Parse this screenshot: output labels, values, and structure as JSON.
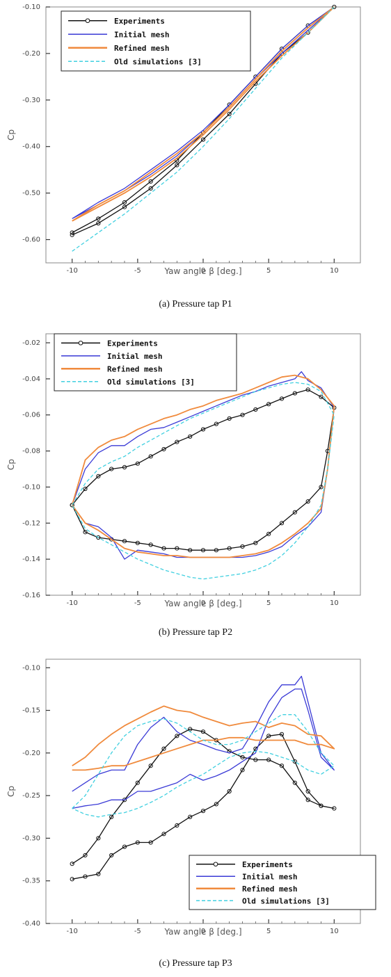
{
  "colors": {
    "experiments": "#111111",
    "initial_mesh": "#3a3ad6",
    "refined_mesh": "#f08a3c",
    "old_simulations": "#40d0e0"
  },
  "chart_data": [
    {
      "type": "line",
      "caption": "(a)  Pressure tap P1",
      "xlabel": "Yaw angle β [deg.]",
      "ylabel": "Cp",
      "xlim": [
        -12,
        12
      ],
      "ylim": [
        -0.65,
        -0.1
      ],
      "xticks": [
        -10,
        -5,
        0,
        5,
        10
      ],
      "xtick_labels": [
        "-10",
        "-5",
        "0",
        "5",
        "10"
      ],
      "yticks": [
        -0.1,
        -0.2,
        -0.3,
        -0.4,
        -0.5,
        -0.6
      ],
      "ytick_labels": [
        "-0.10",
        "-0.20",
        "-0.30",
        "-0.40",
        "-0.50",
        "-0.60"
      ],
      "legend_position": "top-left",
      "series": [
        {
          "name": "Experiments",
          "key": "experiments",
          "marker": "circle",
          "x": [
            -10,
            -8,
            -6,
            -4,
            -2,
            0,
            2,
            4,
            6,
            8,
            10,
            8,
            6,
            4,
            2,
            0,
            -2,
            -4,
            -6,
            -8,
            -10
          ],
          "y": [
            -0.59,
            -0.565,
            -0.53,
            -0.49,
            -0.44,
            -0.385,
            -0.33,
            -0.265,
            -0.2,
            -0.155,
            -0.1,
            -0.14,
            -0.19,
            -0.25,
            -0.31,
            -0.37,
            -0.43,
            -0.475,
            -0.52,
            -0.555,
            -0.585
          ]
        },
        {
          "name": "Initial mesh",
          "key": "initial_mesh",
          "x": [
            -10,
            -8,
            -6,
            -4,
            -2,
            0,
            2,
            4,
            6,
            8,
            10,
            8,
            6,
            4,
            2,
            0,
            -2,
            -4,
            -6,
            -8,
            -10
          ],
          "y": [
            -0.555,
            -0.525,
            -0.495,
            -0.46,
            -0.42,
            -0.37,
            -0.315,
            -0.255,
            -0.2,
            -0.15,
            -0.1,
            -0.14,
            -0.19,
            -0.25,
            -0.31,
            -0.365,
            -0.41,
            -0.45,
            -0.49,
            -0.52,
            -0.555
          ]
        },
        {
          "name": "Refined mesh",
          "key": "refined_mesh",
          "x": [
            -10,
            -8,
            -6,
            -4,
            -2,
            0,
            2,
            4,
            6,
            8,
            10,
            8,
            6,
            4,
            2,
            0,
            -2,
            -4,
            -6,
            -8,
            -10
          ],
          "y": [
            -0.56,
            -0.53,
            -0.5,
            -0.465,
            -0.425,
            -0.375,
            -0.32,
            -0.26,
            -0.205,
            -0.155,
            -0.1,
            -0.145,
            -0.195,
            -0.255,
            -0.315,
            -0.37,
            -0.415,
            -0.455,
            -0.495,
            -0.525,
            -0.56
          ]
        },
        {
          "name": "Old simulations [3]",
          "key": "old_simulations",
          "dashed": true,
          "x": [
            -10,
            -8,
            -6,
            -4,
            -2,
            0,
            2,
            4,
            6,
            8,
            10
          ],
          "y": [
            -0.625,
            -0.585,
            -0.545,
            -0.5,
            -0.455,
            -0.4,
            -0.34,
            -0.275,
            -0.21,
            -0.155,
            -0.1
          ]
        }
      ]
    },
    {
      "type": "line",
      "caption": "(b)  Pressure tap P2",
      "xlabel": "Yaw angle β [deg.]",
      "ylabel": "Cp",
      "xlim": [
        -12,
        12
      ],
      "ylim": [
        -0.16,
        -0.015
      ],
      "xticks": [
        -10,
        -5,
        0,
        5,
        10
      ],
      "xtick_labels": [
        "-10",
        "-5",
        "0",
        "5",
        "10"
      ],
      "yticks": [
        -0.02,
        -0.04,
        -0.06,
        -0.08,
        -0.1,
        -0.12,
        -0.14,
        -0.16
      ],
      "ytick_labels": [
        "-0.02",
        "-0.04",
        "-0.06",
        "-0.08",
        "-0.10",
        "-0.12",
        "-0.14",
        "-0.16"
      ],
      "legend_position": "top-left",
      "series": [
        {
          "name": "Experiments",
          "key": "experiments",
          "marker": "circle",
          "x": [
            -10,
            -9,
            -8,
            -7,
            -6,
            -5,
            -4,
            -3,
            -2,
            -1,
            0,
            1,
            2,
            3,
            4,
            5,
            6,
            7,
            8,
            9,
            10,
            9.5,
            9,
            8,
            7,
            6,
            5,
            4,
            3,
            2,
            1,
            0,
            -1,
            -2,
            -3,
            -4,
            -5,
            -6,
            -7,
            -8,
            -9,
            -10
          ],
          "y": [
            -0.11,
            -0.101,
            -0.094,
            -0.09,
            -0.089,
            -0.087,
            -0.083,
            -0.079,
            -0.075,
            -0.072,
            -0.068,
            -0.065,
            -0.062,
            -0.06,
            -0.057,
            -0.054,
            -0.051,
            -0.048,
            -0.046,
            -0.05,
            -0.056,
            -0.08,
            -0.1,
            -0.108,
            -0.114,
            -0.12,
            -0.126,
            -0.131,
            -0.133,
            -0.134,
            -0.135,
            -0.135,
            -0.135,
            -0.134,
            -0.134,
            -0.132,
            -0.131,
            -0.13,
            -0.129,
            -0.128,
            -0.125,
            -0.11
          ]
        },
        {
          "name": "Initial mesh",
          "key": "initial_mesh",
          "x": [
            -10,
            -9,
            -8,
            -7,
            -6,
            -5,
            -4,
            -3,
            -2,
            -1,
            0,
            1,
            2,
            3,
            4,
            5,
            6,
            7,
            7.5,
            8,
            9,
            10,
            9.5,
            9,
            8,
            7,
            6,
            5,
            4,
            3,
            2,
            1,
            0,
            -1,
            -2,
            -3,
            -4,
            -5,
            -6,
            -7,
            -8,
            -9,
            -10
          ],
          "y": [
            -0.11,
            -0.09,
            -0.081,
            -0.077,
            -0.077,
            -0.072,
            -0.068,
            -0.067,
            -0.064,
            -0.061,
            -0.058,
            -0.055,
            -0.052,
            -0.049,
            -0.047,
            -0.044,
            -0.042,
            -0.04,
            -0.036,
            -0.041,
            -0.045,
            -0.056,
            -0.09,
            -0.114,
            -0.122,
            -0.127,
            -0.133,
            -0.136,
            -0.138,
            -0.139,
            -0.139,
            -0.139,
            -0.139,
            -0.139,
            -0.139,
            -0.137,
            -0.136,
            -0.135,
            -0.14,
            -0.128,
            -0.122,
            -0.12,
            -0.11
          ]
        },
        {
          "name": "Refined mesh",
          "key": "refined_mesh",
          "x": [
            -10,
            -9,
            -8,
            -7,
            -6,
            -5,
            -4,
            -3,
            -2,
            -1,
            0,
            1,
            2,
            3,
            4,
            5,
            6,
            7,
            8,
            9,
            10,
            9.5,
            9,
            8,
            7,
            6,
            5,
            4,
            3,
            2,
            1,
            0,
            -1,
            -2,
            -3,
            -4,
            -5,
            -6,
            -7,
            -8,
            -9,
            -10
          ],
          "y": [
            -0.11,
            -0.085,
            -0.078,
            -0.074,
            -0.072,
            -0.068,
            -0.065,
            -0.062,
            -0.06,
            -0.057,
            -0.055,
            -0.052,
            -0.05,
            -0.048,
            -0.045,
            -0.042,
            -0.039,
            -0.038,
            -0.04,
            -0.046,
            -0.055,
            -0.09,
            -0.112,
            -0.12,
            -0.126,
            -0.131,
            -0.135,
            -0.137,
            -0.138,
            -0.139,
            -0.139,
            -0.139,
            -0.139,
            -0.138,
            -0.138,
            -0.137,
            -0.136,
            -0.134,
            -0.129,
            -0.124,
            -0.12,
            -0.11
          ]
        },
        {
          "name": "Old simulations [3]",
          "key": "old_simulations",
          "dashed": true,
          "x": [
            -10,
            -9,
            -8,
            -7,
            -6,
            -5,
            -4,
            -3,
            -2,
            -1,
            0,
            1,
            2,
            3,
            4,
            5,
            6,
            7,
            8,
            9,
            10,
            9.5,
            9,
            8,
            7,
            6,
            5,
            4,
            3,
            2,
            1,
            0,
            -1,
            -2,
            -3,
            -4,
            -5,
            -6,
            -7,
            -8,
            -9,
            -10
          ],
          "y": [
            -0.11,
            -0.098,
            -0.09,
            -0.086,
            -0.083,
            -0.078,
            -0.074,
            -0.07,
            -0.066,
            -0.062,
            -0.059,
            -0.056,
            -0.053,
            -0.05,
            -0.047,
            -0.045,
            -0.043,
            -0.042,
            -0.043,
            -0.047,
            -0.06,
            -0.09,
            -0.11,
            -0.122,
            -0.131,
            -0.138,
            -0.143,
            -0.146,
            -0.148,
            -0.149,
            -0.15,
            -0.151,
            -0.15,
            -0.148,
            -0.146,
            -0.143,
            -0.14,
            -0.136,
            -0.132,
            -0.128,
            -0.123,
            -0.11
          ]
        }
      ]
    },
    {
      "type": "line",
      "caption": "(c)  Pressure tap P3",
      "xlabel": "Yaw angle β [deg.]",
      "ylabel": "Cp",
      "xlim": [
        -12,
        12
      ],
      "ylim": [
        -0.4,
        -0.09
      ],
      "xticks": [
        -10,
        -5,
        0,
        5,
        10
      ],
      "xtick_labels": [
        "-10",
        "-5",
        "0",
        "5",
        "10"
      ],
      "yticks": [
        -0.1,
        -0.15,
        -0.2,
        -0.25,
        -0.3,
        -0.35,
        -0.4
      ],
      "ytick_labels": [
        "-0.10",
        "-0.15",
        "-0.20",
        "-0.25",
        "-0.30",
        "-0.35",
        "-0.40"
      ],
      "legend_position": "bottom-right",
      "series": [
        {
          "name": "Experiments",
          "key": "experiments",
          "marker": "circle",
          "x": [
            -10,
            -9,
            -8,
            -7,
            -6,
            -5,
            -4,
            -3,
            -2,
            -1,
            0,
            1,
            2,
            3,
            4,
            5,
            6,
            7,
            8,
            9,
            10,
            9,
            8,
            7,
            6,
            5,
            4,
            3,
            2,
            1,
            0,
            -1,
            -2,
            -3,
            -4,
            -5,
            -6,
            -7,
            -8,
            -9,
            -10
          ],
          "y": [
            -0.33,
            -0.32,
            -0.3,
            -0.275,
            -0.255,
            -0.235,
            -0.215,
            -0.195,
            -0.18,
            -0.172,
            -0.175,
            -0.185,
            -0.198,
            -0.205,
            -0.208,
            -0.208,
            -0.215,
            -0.235,
            -0.255,
            -0.262,
            -0.265,
            -0.262,
            -0.245,
            -0.21,
            -0.178,
            -0.18,
            -0.195,
            -0.22,
            -0.245,
            -0.26,
            -0.268,
            -0.275,
            -0.285,
            -0.295,
            -0.305,
            -0.305,
            -0.31,
            -0.32,
            -0.342,
            -0.345,
            -0.348
          ]
        },
        {
          "name": "Initial mesh",
          "key": "initial_mesh",
          "x": [
            -10,
            -9,
            -8,
            -7,
            -6,
            -5,
            -4,
            -3,
            -2,
            -1,
            0,
            1,
            2,
            3,
            4,
            5,
            6,
            7,
            7.5,
            8,
            9,
            10,
            9,
            8,
            7.5,
            7,
            6,
            5,
            4,
            3,
            2,
            1,
            0,
            -1,
            -2,
            -3,
            -4,
            -5,
            -6,
            -7,
            -8,
            -9,
            -10
          ],
          "y": [
            -0.245,
            -0.235,
            -0.225,
            -0.22,
            -0.22,
            -0.19,
            -0.17,
            -0.158,
            -0.175,
            -0.185,
            -0.19,
            -0.196,
            -0.2,
            -0.195,
            -0.17,
            -0.14,
            -0.12,
            -0.12,
            -0.11,
            -0.14,
            -0.2,
            -0.22,
            -0.205,
            -0.15,
            -0.125,
            -0.125,
            -0.135,
            -0.16,
            -0.2,
            -0.21,
            -0.22,
            -0.227,
            -0.232,
            -0.225,
            -0.235,
            -0.24,
            -0.245,
            -0.245,
            -0.255,
            -0.255,
            -0.26,
            -0.262,
            -0.265
          ]
        },
        {
          "name": "Refined mesh",
          "key": "refined_mesh",
          "x": [
            -10,
            -9,
            -8,
            -7,
            -6,
            -5,
            -4,
            -3,
            -2,
            -1,
            0,
            1,
            2,
            3,
            4,
            5,
            6,
            7,
            8,
            9,
            10,
            9,
            8,
            7,
            6,
            5,
            4,
            3,
            2,
            1,
            0,
            -1,
            -2,
            -3,
            -4,
            -5,
            -6,
            -7,
            -8,
            -9,
            -10
          ],
          "y": [
            -0.215,
            -0.205,
            -0.19,
            -0.178,
            -0.168,
            -0.16,
            -0.152,
            -0.145,
            -0.15,
            -0.152,
            -0.158,
            -0.163,
            -0.168,
            -0.165,
            -0.163,
            -0.17,
            -0.165,
            -0.168,
            -0.178,
            -0.18,
            -0.195,
            -0.19,
            -0.19,
            -0.185,
            -0.185,
            -0.185,
            -0.185,
            -0.182,
            -0.182,
            -0.185,
            -0.185,
            -0.19,
            -0.195,
            -0.2,
            -0.205,
            -0.21,
            -0.215,
            -0.215,
            -0.218,
            -0.22,
            -0.22
          ]
        },
        {
          "name": "Old simulations [3]",
          "key": "old_simulations",
          "dashed": true,
          "x": [
            -10,
            -9,
            -8,
            -7,
            -6,
            -5,
            -4,
            -3,
            -2,
            -1,
            0,
            1,
            2,
            3,
            4,
            5,
            6,
            7,
            8,
            9,
            10,
            9,
            8,
            7,
            6,
            5,
            4,
            3,
            2,
            1,
            0,
            -1,
            -2,
            -3,
            -4,
            -5,
            -6,
            -7,
            -8,
            -9,
            -10
          ],
          "y": [
            -0.265,
            -0.25,
            -0.225,
            -0.2,
            -0.18,
            -0.168,
            -0.163,
            -0.16,
            -0.165,
            -0.175,
            -0.185,
            -0.19,
            -0.19,
            -0.185,
            -0.175,
            -0.165,
            -0.155,
            -0.155,
            -0.175,
            -0.2,
            -0.215,
            -0.225,
            -0.22,
            -0.21,
            -0.205,
            -0.2,
            -0.198,
            -0.2,
            -0.205,
            -0.215,
            -0.225,
            -0.232,
            -0.24,
            -0.25,
            -0.258,
            -0.265,
            -0.27,
            -0.272,
            -0.275,
            -0.272,
            -0.265
          ]
        }
      ]
    }
  ]
}
